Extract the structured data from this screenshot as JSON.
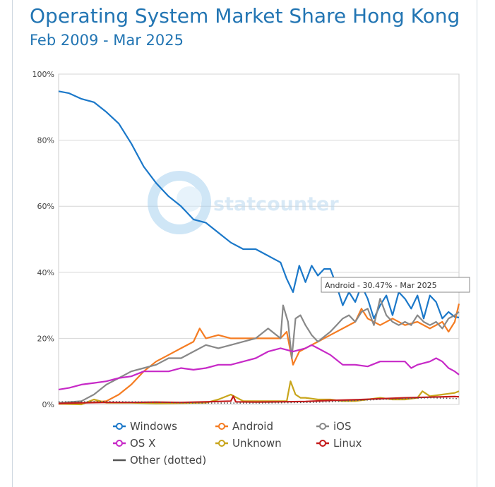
{
  "header": {
    "title": "Operating System Market Share Hong Kong",
    "subtitle": "Feb 2009 - Mar 2025"
  },
  "watermark": {
    "text": "statcounter"
  },
  "tooltip": {
    "text": "Android - 30.47% - Mar 2025"
  },
  "chart_data": {
    "type": "line",
    "title": "Operating System Market Share Hong Kong",
    "subtitle": "Feb 2009 - Mar 2025",
    "x_start": "Feb 2009",
    "x_end": "Mar 2025",
    "ylim": [
      0,
      100
    ],
    "yticks": [
      "0%",
      "20%",
      "40%",
      "60%",
      "80%",
      "100%"
    ],
    "grid": true,
    "legend_position": "bottom",
    "series": [
      {
        "name": "Windows",
        "color": "#1b78c9",
        "marker": "circle",
        "dash": "solid",
        "points": [
          [
            2009.08,
            94.8
          ],
          [
            2009.5,
            94.2
          ],
          [
            2010,
            92.5
          ],
          [
            2010.5,
            91.5
          ],
          [
            2011,
            88.5
          ],
          [
            2011.5,
            85
          ],
          [
            2012,
            79
          ],
          [
            2012.5,
            72
          ],
          [
            2013,
            67
          ],
          [
            2013.5,
            63
          ],
          [
            2014,
            60
          ],
          [
            2014.5,
            56
          ],
          [
            2015,
            55
          ],
          [
            2015.5,
            52
          ],
          [
            2016,
            49
          ],
          [
            2016.5,
            47
          ],
          [
            2017,
            47
          ],
          [
            2017.5,
            45
          ],
          [
            2018,
            43
          ],
          [
            2018.25,
            38
          ],
          [
            2018.5,
            34
          ],
          [
            2018.75,
            42
          ],
          [
            2019,
            37
          ],
          [
            2019.25,
            42
          ],
          [
            2019.5,
            39
          ],
          [
            2019.75,
            41
          ],
          [
            2020,
            41
          ],
          [
            2020.25,
            36
          ],
          [
            2020.5,
            30
          ],
          [
            2020.75,
            34
          ],
          [
            2021,
            31
          ],
          [
            2021.25,
            36
          ],
          [
            2021.5,
            32
          ],
          [
            2021.75,
            26
          ],
          [
            2022,
            30
          ],
          [
            2022.25,
            33
          ],
          [
            2022.5,
            27
          ],
          [
            2022.75,
            34
          ],
          [
            2023,
            32
          ],
          [
            2023.25,
            29
          ],
          [
            2023.5,
            33
          ],
          [
            2023.75,
            26
          ],
          [
            2024,
            33
          ],
          [
            2024.25,
            31
          ],
          [
            2024.5,
            26
          ],
          [
            2024.75,
            28
          ],
          [
            2025,
            26.5
          ],
          [
            2025.17,
            26.3
          ]
        ]
      },
      {
        "name": "Android",
        "color": "#f57c22",
        "marker": "circle",
        "dash": "solid",
        "points": [
          [
            2009.08,
            0.2
          ],
          [
            2010,
            0.4
          ],
          [
            2011,
            1
          ],
          [
            2011.5,
            3
          ],
          [
            2012,
            6
          ],
          [
            2012.5,
            10
          ],
          [
            2013,
            13
          ],
          [
            2013.5,
            15
          ],
          [
            2014,
            17
          ],
          [
            2014.5,
            19
          ],
          [
            2014.75,
            23
          ],
          [
            2015,
            20
          ],
          [
            2015.5,
            21
          ],
          [
            2016,
            20
          ],
          [
            2016.5,
            20
          ],
          [
            2017,
            20
          ],
          [
            2017.5,
            20
          ],
          [
            2018,
            20
          ],
          [
            2018.25,
            22
          ],
          [
            2018.5,
            12
          ],
          [
            2018.75,
            16
          ],
          [
            2019,
            17
          ],
          [
            2019.5,
            19
          ],
          [
            2020,
            21
          ],
          [
            2020.5,
            23
          ],
          [
            2021,
            25
          ],
          [
            2021.25,
            29
          ],
          [
            2021.5,
            26
          ],
          [
            2022,
            24
          ],
          [
            2022.5,
            26
          ],
          [
            2023,
            24
          ],
          [
            2023.5,
            25
          ],
          [
            2024,
            23
          ],
          [
            2024.5,
            25
          ],
          [
            2024.75,
            22
          ],
          [
            2025,
            25
          ],
          [
            2025.17,
            30.47
          ]
        ]
      },
      {
        "name": "iOS",
        "color": "#888888",
        "marker": "circle",
        "dash": "solid",
        "points": [
          [
            2009.08,
            0.5
          ],
          [
            2010,
            1
          ],
          [
            2010.5,
            3
          ],
          [
            2011,
            6
          ],
          [
            2011.5,
            8
          ],
          [
            2012,
            10
          ],
          [
            2012.5,
            11
          ],
          [
            2013,
            12
          ],
          [
            2013.5,
            14
          ],
          [
            2014,
            14
          ],
          [
            2014.5,
            16
          ],
          [
            2015,
            18
          ],
          [
            2015.5,
            17
          ],
          [
            2016,
            18
          ],
          [
            2016.5,
            19
          ],
          [
            2017,
            20
          ],
          [
            2017.5,
            23
          ],
          [
            2018,
            20
          ],
          [
            2018.1,
            30
          ],
          [
            2018.3,
            25
          ],
          [
            2018.45,
            14
          ],
          [
            2018.6,
            26
          ],
          [
            2018.8,
            27
          ],
          [
            2019,
            24
          ],
          [
            2019.25,
            21
          ],
          [
            2019.5,
            19
          ],
          [
            2020,
            22
          ],
          [
            2020.25,
            24
          ],
          [
            2020.5,
            26
          ],
          [
            2020.75,
            27
          ],
          [
            2021,
            25
          ],
          [
            2021.25,
            28
          ],
          [
            2021.5,
            29
          ],
          [
            2021.75,
            24
          ],
          [
            2022,
            32
          ],
          [
            2022.25,
            27
          ],
          [
            2022.5,
            25
          ],
          [
            2022.75,
            24
          ],
          [
            2023,
            25
          ],
          [
            2023.25,
            24
          ],
          [
            2023.5,
            27
          ],
          [
            2023.75,
            25
          ],
          [
            2024,
            24
          ],
          [
            2024.25,
            25
          ],
          [
            2024.5,
            23
          ],
          [
            2024.75,
            26
          ],
          [
            2025,
            27
          ],
          [
            2025.17,
            28
          ]
        ]
      },
      {
        "name": "OS X",
        "color": "#c729c7",
        "marker": "circle",
        "dash": "solid",
        "points": [
          [
            2009.08,
            4.5
          ],
          [
            2009.5,
            5
          ],
          [
            2010,
            6
          ],
          [
            2010.5,
            6.5
          ],
          [
            2011,
            7
          ],
          [
            2011.5,
            8
          ],
          [
            2012,
            8.5
          ],
          [
            2012.5,
            10
          ],
          [
            2013,
            10
          ],
          [
            2013.5,
            10
          ],
          [
            2014,
            11
          ],
          [
            2014.5,
            10.5
          ],
          [
            2015,
            11
          ],
          [
            2015.5,
            12
          ],
          [
            2016,
            12
          ],
          [
            2016.5,
            13
          ],
          [
            2017,
            14
          ],
          [
            2017.5,
            16
          ],
          [
            2018,
            17
          ],
          [
            2018.5,
            16
          ],
          [
            2019,
            17
          ],
          [
            2019.25,
            18
          ],
          [
            2019.5,
            17
          ],
          [
            2020,
            15
          ],
          [
            2020.5,
            12
          ],
          [
            2021,
            12
          ],
          [
            2021.5,
            11.5
          ],
          [
            2022,
            13
          ],
          [
            2022.5,
            13
          ],
          [
            2023,
            13
          ],
          [
            2023.25,
            11
          ],
          [
            2023.5,
            12
          ],
          [
            2024,
            13
          ],
          [
            2024.25,
            14
          ],
          [
            2024.5,
            13
          ],
          [
            2024.75,
            11
          ],
          [
            2025,
            10
          ],
          [
            2025.17,
            9
          ]
        ]
      },
      {
        "name": "Unknown",
        "color": "#c8a51b",
        "marker": "circle",
        "dash": "solid",
        "points": [
          [
            2009.08,
            0.2
          ],
          [
            2010,
            0
          ],
          [
            2010.5,
            1.5
          ],
          [
            2011,
            0.5
          ],
          [
            2012,
            0.5
          ],
          [
            2013,
            0.3
          ],
          [
            2014,
            0.4
          ],
          [
            2015,
            0.5
          ],
          [
            2015.5,
            1.5
          ],
          [
            2016,
            3
          ],
          [
            2016.5,
            1
          ],
          [
            2017,
            1
          ],
          [
            2017.5,
            1
          ],
          [
            2018,
            1
          ],
          [
            2018.25,
            1
          ],
          [
            2018.4,
            7
          ],
          [
            2018.6,
            3
          ],
          [
            2018.8,
            2
          ],
          [
            2019,
            2
          ],
          [
            2019.5,
            1.5
          ],
          [
            2020,
            1.5
          ],
          [
            2020.5,
            1
          ],
          [
            2021,
            1
          ],
          [
            2021.5,
            1.5
          ],
          [
            2022,
            2
          ],
          [
            2022.5,
            1.5
          ],
          [
            2023,
            1.5
          ],
          [
            2023.5,
            2
          ],
          [
            2023.7,
            4
          ],
          [
            2024,
            2.5
          ],
          [
            2024.5,
            3
          ],
          [
            2025,
            3.5
          ],
          [
            2025.17,
            4
          ]
        ]
      },
      {
        "name": "Linux",
        "color": "#c41a1a",
        "marker": "circle",
        "dash": "solid",
        "points": [
          [
            2009.08,
            0.3
          ],
          [
            2010,
            0.5
          ],
          [
            2011,
            0.6
          ],
          [
            2012,
            0.6
          ],
          [
            2013,
            0.7
          ],
          [
            2014,
            0.6
          ],
          [
            2015,
            0.8
          ],
          [
            2016,
            1
          ],
          [
            2016.1,
            2.5
          ],
          [
            2016.2,
            0.8
          ],
          [
            2017,
            0.7
          ],
          [
            2018,
            0.8
          ],
          [
            2019,
            0.9
          ],
          [
            2020,
            1.2
          ],
          [
            2021,
            1.4
          ],
          [
            2022,
            1.7
          ],
          [
            2023,
            2
          ],
          [
            2024,
            2.2
          ],
          [
            2025,
            2.4
          ],
          [
            2025.17,
            2.3
          ]
        ]
      },
      {
        "name": "Other (dotted)",
        "color": "#555555",
        "marker": "none",
        "dash": "dotted",
        "points": [
          [
            2009.08,
            0.8
          ],
          [
            2010,
            0.8
          ],
          [
            2011,
            0.9
          ],
          [
            2012,
            0.8
          ],
          [
            2013,
            0.7
          ],
          [
            2014,
            0.5
          ],
          [
            2015,
            0.4
          ],
          [
            2016,
            0.4
          ],
          [
            2017,
            0.4
          ],
          [
            2018,
            0.5
          ],
          [
            2019,
            0.6
          ],
          [
            2020,
            0.8
          ],
          [
            2021,
            1.2
          ],
          [
            2022,
            1.5
          ],
          [
            2023,
            1.8
          ],
          [
            2024,
            2
          ],
          [
            2025,
            1.8
          ],
          [
            2025.17,
            1.7
          ]
        ]
      }
    ]
  }
}
